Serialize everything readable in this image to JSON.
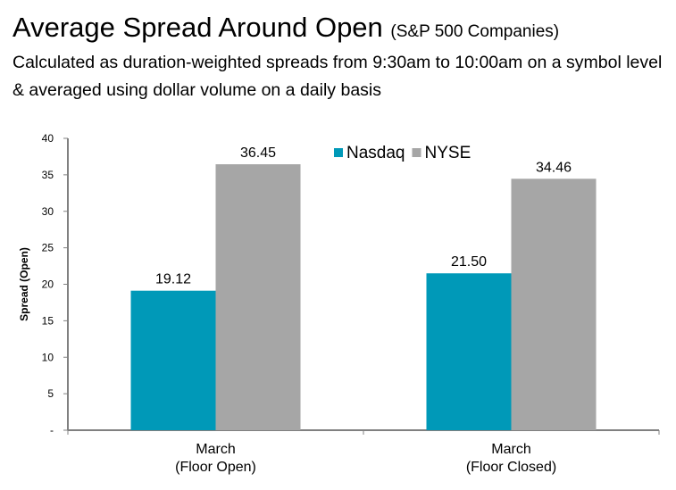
{
  "header": {
    "title": "Average Spread Around Open",
    "title_suffix": "(S&P 500 Companies)",
    "subtitle": "Calculated as duration-weighted spreads from 9:30am to 10:00am on a symbol level & averaged using dollar volume on a daily basis"
  },
  "chart_data": {
    "type": "bar",
    "title": "Average Spread Around Open (S&P 500 Companies)",
    "xlabel": "",
    "ylabel": "Spread (Open)",
    "ylim": [
      0,
      40
    ],
    "yticks": [
      0,
      5,
      10,
      15,
      20,
      25,
      30,
      35,
      40
    ],
    "ytick_labels": [
      "-",
      "5",
      "10",
      "15",
      "20",
      "25",
      "30",
      "35",
      "40"
    ],
    "categories": [
      {
        "line1": "March",
        "line2": "(Floor Open)"
      },
      {
        "line1": "March",
        "line2": "(Floor Closed)"
      }
    ],
    "series": [
      {
        "name": "Nasdaq",
        "color": "#0099B8",
        "values": [
          19.12,
          21.5
        ],
        "labels": [
          "19.12",
          "21.50"
        ]
      },
      {
        "name": "NYSE",
        "color": "#A6A6A6",
        "values": [
          36.45,
          34.46
        ],
        "labels": [
          "36.45",
          "34.46"
        ]
      }
    ],
    "grid": false,
    "legend_position": "top-right",
    "axis_color": "#808080"
  }
}
